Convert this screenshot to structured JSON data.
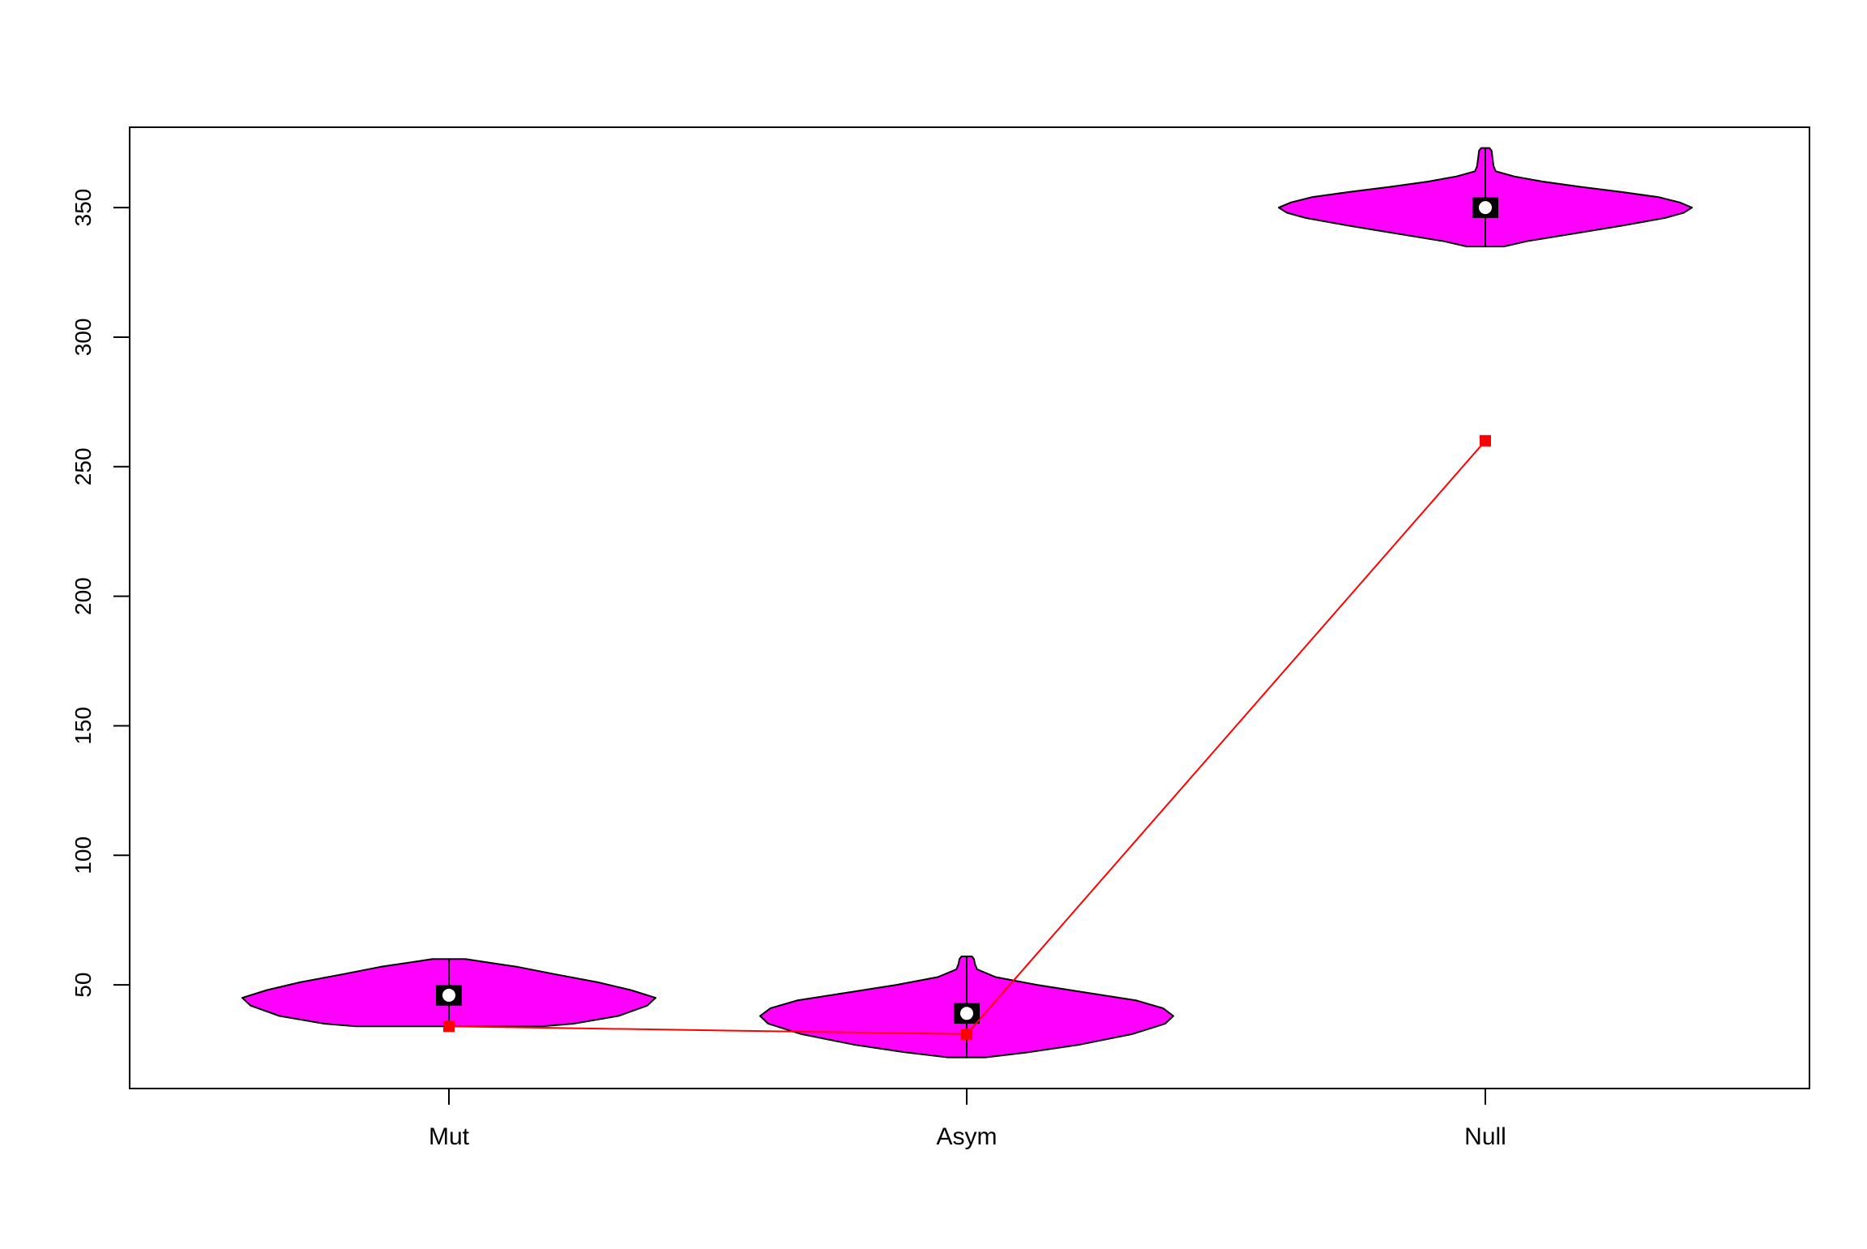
{
  "chart_data": {
    "type": "violin",
    "title": "",
    "xlabel": "",
    "ylabel": "",
    "categories": [
      "Mut",
      "Asym",
      "Null"
    ],
    "ylim": [
      10,
      381
    ],
    "y_ticks": [
      50,
      100,
      150,
      200,
      250,
      300,
      350
    ],
    "grid": false,
    "legend": "none",
    "colors": {
      "violin_fill": "#ff00ff",
      "violin_stroke": "#000000",
      "box": "#000000",
      "median": "#ffffff",
      "overlay_line": "#ff0000"
    },
    "violins": [
      {
        "category": "Mut",
        "min": 34,
        "q1": 42,
        "median": 46,
        "q3": 50,
        "max": 60,
        "density_profile": [
          [
            34,
            0.45
          ],
          [
            35,
            0.6
          ],
          [
            38,
            0.82
          ],
          [
            42,
            0.96
          ],
          [
            45,
            1.0
          ],
          [
            48,
            0.88
          ],
          [
            51,
            0.72
          ],
          [
            54,
            0.52
          ],
          [
            57,
            0.33
          ],
          [
            59,
            0.16
          ],
          [
            60,
            0.08
          ]
        ]
      },
      {
        "category": "Asym",
        "min": 22,
        "q1": 35,
        "median": 39,
        "q3": 43,
        "max": 61,
        "density_profile": [
          [
            22,
            0.09
          ],
          [
            24,
            0.3
          ],
          [
            27,
            0.55
          ],
          [
            31,
            0.8
          ],
          [
            35,
            0.96
          ],
          [
            38,
            1.0
          ],
          [
            41,
            0.95
          ],
          [
            44,
            0.82
          ],
          [
            47,
            0.58
          ],
          [
            50,
            0.34
          ],
          [
            53,
            0.14
          ],
          [
            56,
            0.05
          ],
          [
            58,
            0.04
          ],
          [
            60,
            0.035
          ],
          [
            61,
            0.025
          ]
        ]
      },
      {
        "category": "Null",
        "min": 335,
        "q1": 346,
        "median": 350,
        "q3": 354,
        "max": 373,
        "density_profile": [
          [
            335,
            0.09
          ],
          [
            337,
            0.2
          ],
          [
            340,
            0.43
          ],
          [
            343,
            0.66
          ],
          [
            346,
            0.87
          ],
          [
            348,
            0.96
          ],
          [
            350,
            1.0
          ],
          [
            352,
            0.94
          ],
          [
            354,
            0.84
          ],
          [
            356,
            0.66
          ],
          [
            358,
            0.46
          ],
          [
            360,
            0.28
          ],
          [
            362,
            0.14
          ],
          [
            364,
            0.05
          ],
          [
            366,
            0.04
          ],
          [
            369,
            0.035
          ],
          [
            372,
            0.03
          ],
          [
            373,
            0.02
          ]
        ]
      }
    ],
    "overlay_series": {
      "values": [
        34,
        31,
        260
      ]
    }
  }
}
